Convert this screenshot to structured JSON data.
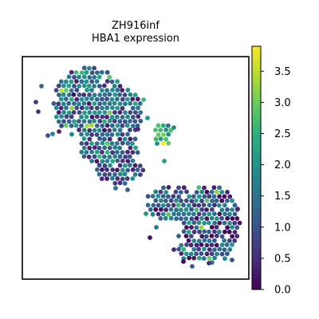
{
  "chart_data": {
    "type": "scatter",
    "title": "ZH916inf",
    "subtitle": "HBA1 expression",
    "xlabel": "",
    "ylabel": "",
    "colorbar": {
      "colormap": "viridis",
      "range": [
        0.0,
        3.9
      ],
      "ticks": [
        {
          "value": 0.0,
          "label": "0.0"
        },
        {
          "value": 0.5,
          "label": "0.5"
        },
        {
          "value": 1.0,
          "label": "1.0"
        },
        {
          "value": 1.5,
          "label": "1.5"
        },
        {
          "value": 2.0,
          "label": "2.0"
        },
        {
          "value": 2.5,
          "label": "2.5"
        },
        {
          "value": 3.0,
          "label": "3.0"
        },
        {
          "value": 3.5,
          "label": "3.5"
        }
      ]
    },
    "grid": false,
    "axes_ticks_visible": false,
    "regions": [
      {
        "name": "upper-left tissue cluster",
        "mean_expression": 1.1
      },
      {
        "name": "small middle cluster",
        "mean_expression": 2.3
      },
      {
        "name": "lower-right tissue cluster",
        "mean_expression": 0.9
      }
    ]
  }
}
